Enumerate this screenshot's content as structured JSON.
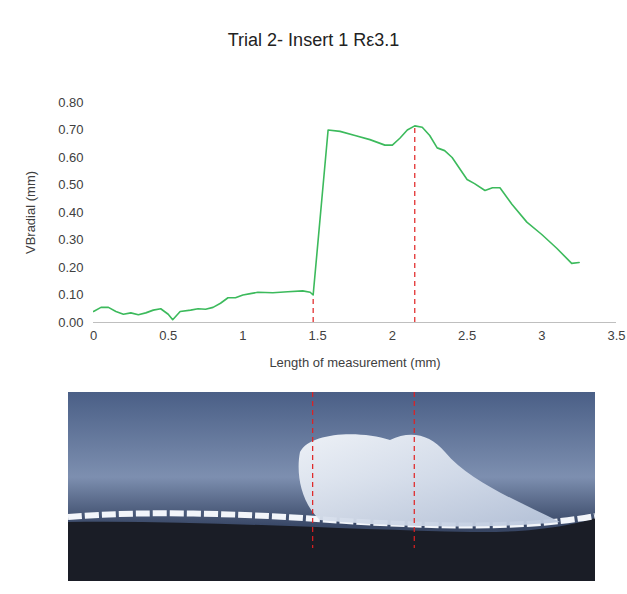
{
  "chart_data": {
    "type": "line",
    "title": "Trial 2- Insert 1 Rε3.1",
    "x_label": "Length of measurement (mm)",
    "y_label": "VBradial (mm)",
    "x": [
      0,
      0.05,
      0.1,
      0.15,
      0.2,
      0.25,
      0.3,
      0.35,
      0.4,
      0.45,
      0.5,
      0.53,
      0.58,
      0.65,
      0.7,
      0.75,
      0.8,
      0.85,
      0.9,
      0.95,
      1.0,
      1.05,
      1.1,
      1.2,
      1.3,
      1.4,
      1.45,
      1.47,
      1.57,
      1.65,
      1.75,
      1.85,
      1.95,
      2.0,
      2.05,
      2.1,
      2.15,
      2.2,
      2.25,
      2.3,
      2.35,
      2.4,
      2.5,
      2.55,
      2.62,
      2.67,
      2.72,
      2.8,
      2.9,
      3.0,
      3.1,
      3.2,
      3.25
    ],
    "values": [
      0.04,
      0.055,
      0.055,
      0.04,
      0.03,
      0.035,
      0.028,
      0.035,
      0.045,
      0.05,
      0.03,
      0.01,
      0.04,
      0.045,
      0.05,
      0.048,
      0.055,
      0.07,
      0.09,
      0.09,
      0.1,
      0.105,
      0.11,
      0.108,
      0.112,
      0.115,
      0.11,
      0.1,
      0.7,
      0.695,
      0.68,
      0.665,
      0.645,
      0.645,
      0.67,
      0.7,
      0.715,
      0.71,
      0.68,
      0.635,
      0.625,
      0.6,
      0.52,
      0.505,
      0.48,
      0.49,
      0.49,
      0.43,
      0.365,
      0.32,
      0.27,
      0.215,
      0.218
    ],
    "color": "#3cba5c",
    "xlim": [
      0,
      3.5
    ],
    "xticks": [
      0,
      0.5,
      1,
      1.5,
      2,
      2.5,
      3,
      3.5
    ],
    "ylim": [
      0,
      0.8
    ],
    "yticks": [
      {
        "value": 0,
        "label": "0.00"
      },
      {
        "value": 0.1,
        "label": "0.10"
      },
      {
        "value": 0.2,
        "label": "0.20"
      },
      {
        "value": 0.3,
        "label": "0.30"
      },
      {
        "value": 0.4,
        "label": "0.40"
      },
      {
        "value": 0.5,
        "label": "0.50"
      },
      {
        "value": 0.6,
        "label": "0.60"
      },
      {
        "value": 0.7,
        "label": "0.70"
      },
      {
        "value": 0.8,
        "label": "0.80"
      }
    ],
    "grid": false,
    "reference_lines": {
      "x": [
        1.47,
        2.15
      ],
      "y": [
        0.1,
        0.715
      ],
      "color": "#e02020",
      "line_style": "dashed"
    }
  }
}
